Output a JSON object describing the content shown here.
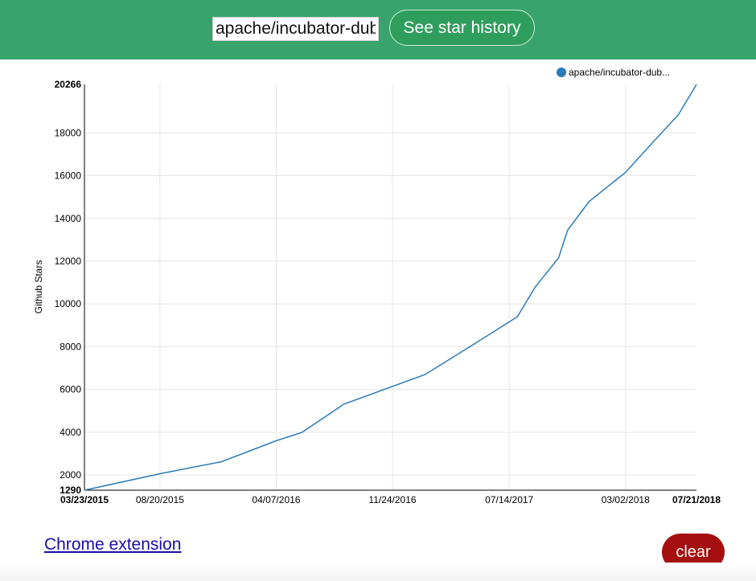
{
  "header": {
    "repo_input_value": "apache/incubator-dubbo",
    "button_label": "See star history",
    "bar_color": "#38a36a"
  },
  "chart_data": {
    "type": "line",
    "title": "",
    "xlabel": "",
    "ylabel": "Github Stars",
    "x_ticks": [
      "03/23/2015",
      "08/20/2015",
      "04/07/2016",
      "11/24/2016",
      "07/14/2017",
      "03/02/2018",
      "07/21/2018"
    ],
    "y_ticks": [
      1290,
      2000,
      4000,
      6000,
      8000,
      10000,
      12000,
      14000,
      16000,
      18000,
      20266
    ],
    "ylim": [
      1290,
      20266
    ],
    "xlim": [
      "2015-03-23",
      "2018-07-21"
    ],
    "grid": true,
    "legend_position": "top-right",
    "series": [
      {
        "name": "apache/incubator-dub...",
        "color": "#2b7bb9",
        "points": [
          {
            "x": "2015-03-23",
            "y": 1290
          },
          {
            "x": "2015-08-20",
            "y": 2060
          },
          {
            "x": "2015-12-20",
            "y": 2620
          },
          {
            "x": "2016-04-07",
            "y": 3600
          },
          {
            "x": "2016-05-28",
            "y": 3990
          },
          {
            "x": "2016-08-20",
            "y": 5320
          },
          {
            "x": "2017-01-28",
            "y": 6700
          },
          {
            "x": "2017-04-30",
            "y": 8050
          },
          {
            "x": "2017-07-30",
            "y": 9400
          },
          {
            "x": "2017-09-04",
            "y": 10800
          },
          {
            "x": "2017-10-20",
            "y": 12150
          },
          {
            "x": "2017-11-07",
            "y": 13450
          },
          {
            "x": "2017-12-20",
            "y": 14800
          },
          {
            "x": "2018-03-02",
            "y": 16150
          },
          {
            "x": "2018-04-25",
            "y": 17550
          },
          {
            "x": "2018-06-15",
            "y": 18850
          },
          {
            "x": "2018-07-21",
            "y": 20266
          }
        ]
      }
    ]
  },
  "footer": {
    "chrome_link_label": "Chrome extension",
    "clear_label": "clear",
    "clear_color": "#a50f0f"
  }
}
